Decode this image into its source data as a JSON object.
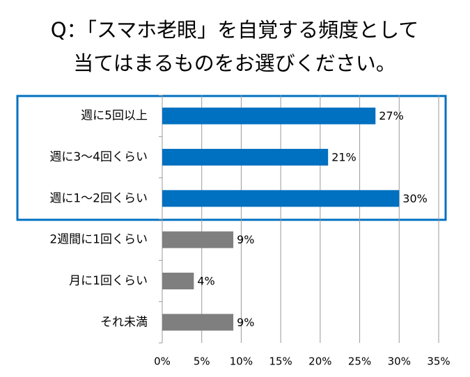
{
  "chart_data": {
    "type": "bar",
    "orientation": "horizontal",
    "title": [
      "Q：「スマホ老眼」を自覚する頻度として",
      "当てはまるものをお選びください。"
    ],
    "categories": [
      "週に5回以上",
      "週に3～4回くらい",
      "週に1～2回くらい",
      "2週間に1回くらい",
      "月に1回くらい",
      "それ未満"
    ],
    "values": [
      27,
      21,
      30,
      9,
      4,
      9
    ],
    "value_labels": [
      "27%",
      "21%",
      "30%",
      "9%",
      "4%",
      "9%"
    ],
    "colors": [
      "#0070c0",
      "#0070c0",
      "#0070c0",
      "#7f7f7f",
      "#7f7f7f",
      "#7f7f7f"
    ],
    "xlim": [
      0,
      35
    ],
    "xticks": [
      {
        "value": 0,
        "label": "0%"
      },
      {
        "value": 5,
        "label": "5%"
      },
      {
        "value": 10,
        "label": "10%"
      },
      {
        "value": 15,
        "label": "15%"
      },
      {
        "value": 20,
        "label": "20%"
      },
      {
        "value": 25,
        "label": "25%"
      },
      {
        "value": 30,
        "label": "30%"
      },
      {
        "value": 35,
        "label": "35%"
      }
    ],
    "grid": true
  }
}
